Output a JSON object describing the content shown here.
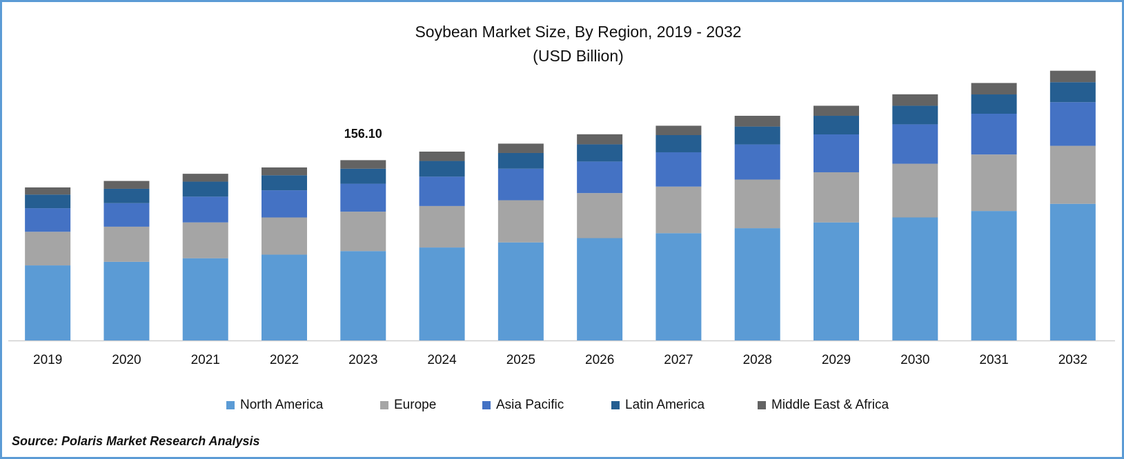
{
  "chart_data": {
    "type": "stacked-bar",
    "title": "Soybean Market Size, By Region, 2019 - 2032",
    "subtitle": "(USD Billion)",
    "source": "Source: Polaris Market Research Analysis",
    "categories": [
      "2019",
      "2020",
      "2021",
      "2022",
      "2023",
      "2024",
      "2025",
      "2026",
      "2027",
      "2028",
      "2029",
      "2030",
      "2031",
      "2032"
    ],
    "ylim": [
      0,
      250
    ],
    "series": [
      {
        "name": "North America",
        "color": "#5b9bd5",
        "values": [
          65.0,
          68.1,
          71.2,
          74.3,
          77.4,
          80.5,
          84.9,
          88.6,
          92.9,
          97.2,
          102.2,
          106.5,
          112.1,
          118.3
        ]
      },
      {
        "name": "Europe",
        "color": "#a5a5a5",
        "values": [
          29.1,
          30.4,
          31.0,
          32.2,
          34.1,
          35.9,
          36.5,
          39.0,
          40.3,
          42.1,
          43.4,
          46.5,
          48.9,
          50.2
        ]
      },
      {
        "name": "Asia Pacific",
        "color": "#4472c4",
        "values": [
          20.4,
          20.4,
          22.3,
          23.5,
          24.2,
          25.4,
          27.3,
          27.3,
          29.7,
          30.4,
          32.8,
          34.1,
          35.3,
          37.8
        ]
      },
      {
        "name": "Latin America",
        "color": "#255e91",
        "values": [
          11.8,
          12.4,
          13.0,
          13.0,
          13.0,
          13.6,
          13.6,
          14.9,
          14.9,
          15.5,
          16.1,
          16.1,
          16.7,
          17.3
        ]
      },
      {
        "name": "Middle East & Africa",
        "color": "#636363",
        "values": [
          6.2,
          6.8,
          6.8,
          6.8,
          7.4,
          8.1,
          8.1,
          8.7,
          8.1,
          9.3,
          8.7,
          9.9,
          9.9,
          9.9
        ]
      }
    ],
    "annotations": [
      {
        "label": "156.10",
        "value": 156.1,
        "category": "2023"
      }
    ]
  }
}
